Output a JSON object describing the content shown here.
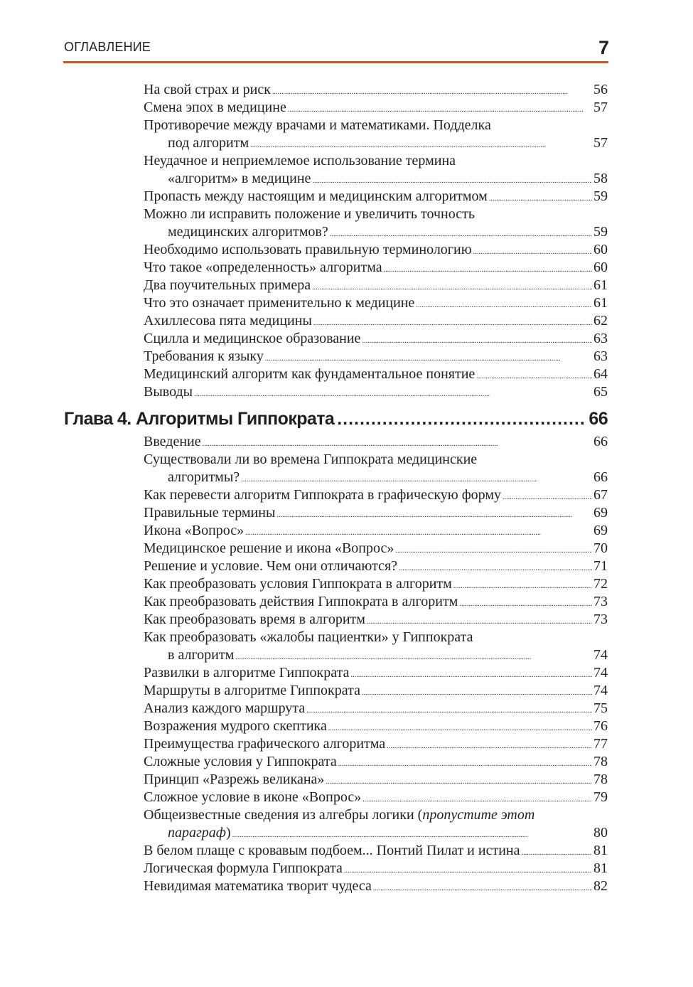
{
  "header": {
    "section_title": "ОГЛАВЛЕНИЕ",
    "page_number": "7",
    "rule_color": "#c45a28"
  },
  "toc": [
    {
      "type": "entry",
      "lines": [
        "На свой страх и риск"
      ],
      "page": "56"
    },
    {
      "type": "entry",
      "lines": [
        "Смена эпох в медицине"
      ],
      "page": "57"
    },
    {
      "type": "entry",
      "lines": [
        "Противоречие между врачами и математиками. Подделка",
        "под алгоритм"
      ],
      "page": "57"
    },
    {
      "type": "entry",
      "lines": [
        "Неудачное и неприемлемое использование термина",
        "«алгоритм» в медицине"
      ],
      "page": "58"
    },
    {
      "type": "entry",
      "lines": [
        "Пропасть между настоящим и медицинским алгоритмом"
      ],
      "page": "59"
    },
    {
      "type": "entry",
      "lines": [
        "Можно ли исправить положение и увеличить точность",
        "медицинских алгоритмов?"
      ],
      "page": "59"
    },
    {
      "type": "entry",
      "lines": [
        "Необходимо использовать правильную терминологию"
      ],
      "page": "60"
    },
    {
      "type": "entry",
      "lines": [
        "Что такое «определенность» алгоритма"
      ],
      "page": "60"
    },
    {
      "type": "entry",
      "lines": [
        "Два поучительных примера"
      ],
      "page": "61"
    },
    {
      "type": "entry",
      "lines": [
        "Что это означает применительно к медицине"
      ],
      "page": "61"
    },
    {
      "type": "entry",
      "lines": [
        "Ахиллесова пята медицины"
      ],
      "page": "62"
    },
    {
      "type": "entry",
      "lines": [
        "Сцилла и медицинское образование"
      ],
      "page": "63"
    },
    {
      "type": "entry",
      "lines": [
        "Требования к языку"
      ],
      "page": "63"
    },
    {
      "type": "entry",
      "lines": [
        "Медицинский алгоритм как фундаментальное понятие"
      ],
      "page": "64"
    },
    {
      "type": "entry",
      "lines": [
        "Выводы"
      ],
      "page": "65"
    },
    {
      "type": "chapter",
      "lines": [
        "Глава 4. Алгоритмы Гиппократа"
      ],
      "page": "66"
    },
    {
      "type": "entry",
      "lines": [
        "Введение"
      ],
      "page": "66"
    },
    {
      "type": "entry",
      "lines": [
        "Существовали ли во времена Гиппократа медицинские",
        "алгоритмы?"
      ],
      "page": "66"
    },
    {
      "type": "entry",
      "lines": [
        "Как перевести алгоритм Гиппократа в графическую форму"
      ],
      "page": "67"
    },
    {
      "type": "entry",
      "lines": [
        "Правильные термины"
      ],
      "page": "69"
    },
    {
      "type": "entry",
      "lines": [
        "Икона «Вопрос»"
      ],
      "page": "69"
    },
    {
      "type": "entry",
      "lines": [
        "Медицинское решение и икона «Вопрос»"
      ],
      "page": "70"
    },
    {
      "type": "entry",
      "lines": [
        "Решение и условие. Чем они отличаются?"
      ],
      "page": "71"
    },
    {
      "type": "entry",
      "lines": [
        "Как преобразовать условия Гиппократа в алгоритм"
      ],
      "page": "72"
    },
    {
      "type": "entry",
      "lines": [
        "Как преобразовать действия Гиппократа в алгоритм"
      ],
      "page": "73"
    },
    {
      "type": "entry",
      "lines": [
        "Как преобразовать время в алгоритм"
      ],
      "page": "73"
    },
    {
      "type": "entry",
      "lines": [
        "Как преобразовать «жалобы пациентки» у Гиппократа",
        "в алгоритм"
      ],
      "page": "74"
    },
    {
      "type": "entry",
      "lines": [
        "Развилки в алгоритме Гиппократа"
      ],
      "page": "74"
    },
    {
      "type": "entry",
      "lines": [
        "Маршруты в алгоритме Гиппократа"
      ],
      "page": "74"
    },
    {
      "type": "entry",
      "lines": [
        "Анализ каждого маршрута"
      ],
      "page": "75"
    },
    {
      "type": "entry",
      "lines": [
        "Возражения мудрого скептика"
      ],
      "page": "76"
    },
    {
      "type": "entry",
      "lines": [
        "Преимущества графического алгоритма"
      ],
      "page": "77"
    },
    {
      "type": "entry",
      "lines": [
        "Сложные условия у Гиппократа"
      ],
      "page": "78"
    },
    {
      "type": "entry",
      "lines": [
        "Принцип «Разрежь великана»"
      ],
      "page": "78"
    },
    {
      "type": "entry",
      "lines": [
        "Сложное условие в иконе «Вопрос»"
      ],
      "page": "79"
    },
    {
      "type": "entry",
      "lines": [
        "Общеизвестные сведения из алгебры логики (",
        "параграф",
        ")"
      ],
      "italic": [
        "пропустите этот"
      ],
      "page": "80"
    },
    {
      "type": "entry",
      "lines": [
        "В белом плаще с кровавым подбоем... Понтий Пилат и истина"
      ],
      "page": "81"
    },
    {
      "type": "entry",
      "lines": [
        "Логическая формула Гиппократа"
      ],
      "page": "81"
    },
    {
      "type": "entry",
      "lines": [
        "Невидимая математика творит чудеса"
      ],
      "page": "82"
    }
  ]
}
